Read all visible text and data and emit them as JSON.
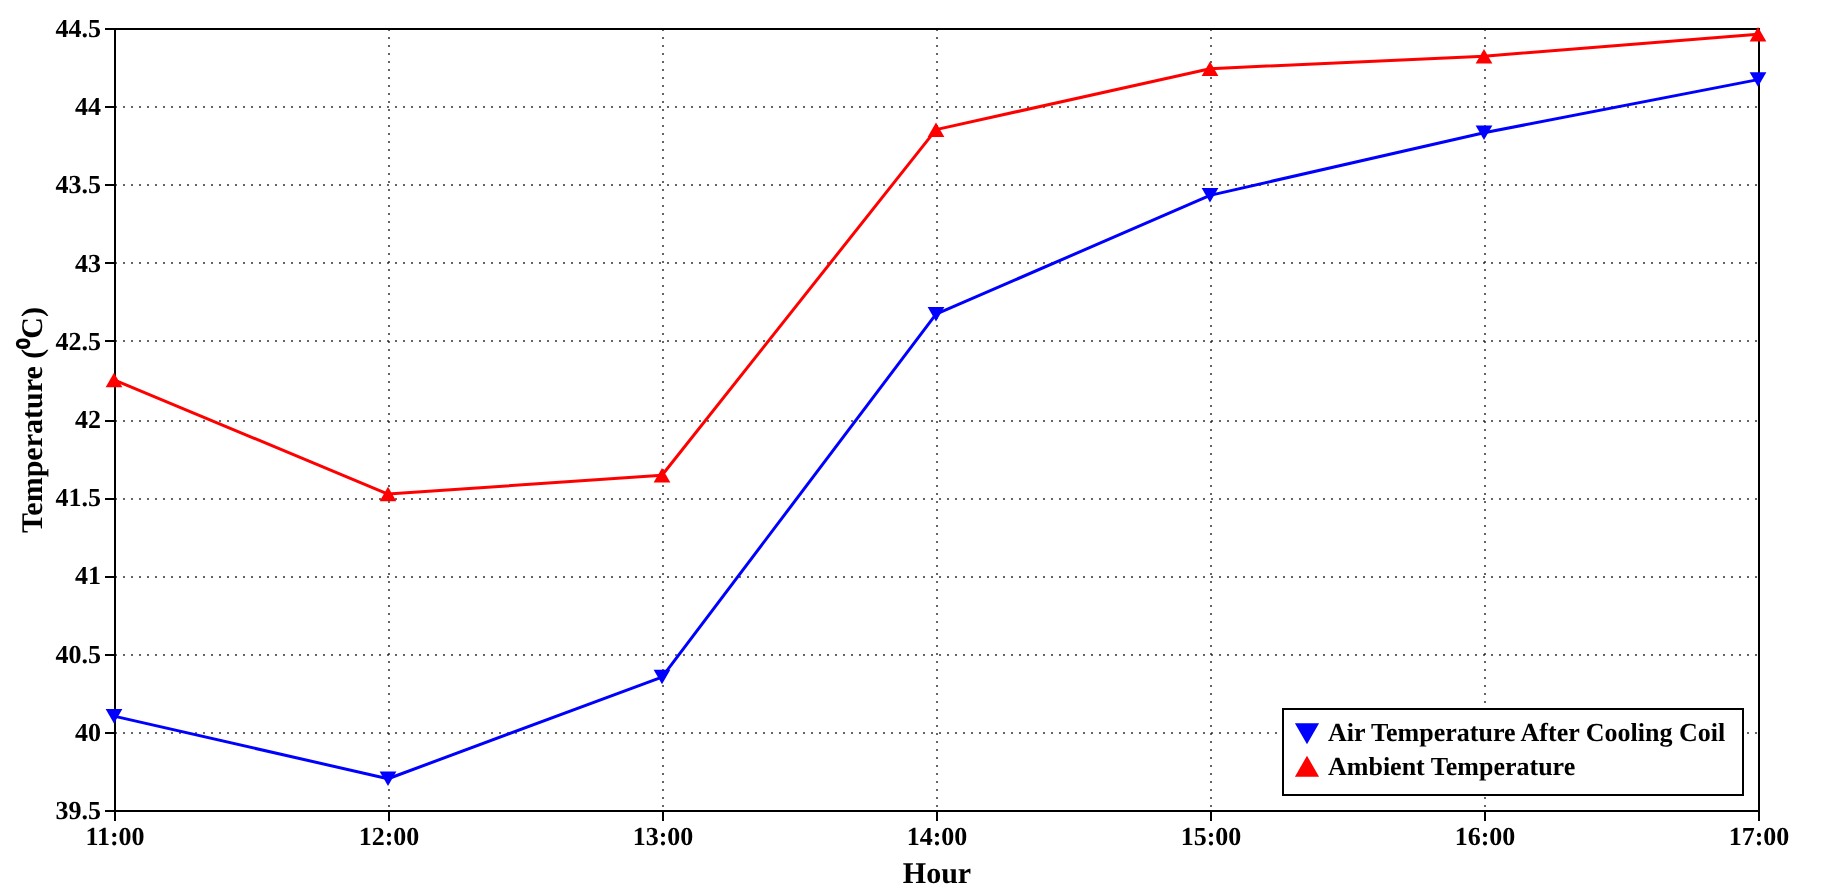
{
  "chart_data": {
    "type": "line",
    "xlabel": "Hour",
    "ylabel": "Temperature (⁰C)",
    "x": [
      11,
      12,
      13,
      14,
      15,
      16,
      17
    ],
    "series": [
      {
        "name": "Air Temperature After Cooling Coil",
        "color": "#0000ff",
        "marker": "triangle-down",
        "values": [
          40.1,
          39.7,
          40.35,
          42.67,
          43.43,
          43.83,
          44.17
        ]
      },
      {
        "name": "Ambient Temperature",
        "color": "#ff0000",
        "marker": "triangle",
        "values": [
          42.25,
          41.52,
          41.64,
          43.85,
          44.24,
          44.32,
          44.46
        ]
      }
    ],
    "xlim": [
      11,
      17
    ],
    "xticks": [
      {
        "value": 11,
        "label": "11:00"
      },
      {
        "value": 12,
        "label": "12:00"
      },
      {
        "value": 13,
        "label": "13:00"
      },
      {
        "value": 14,
        "label": "14:00"
      },
      {
        "value": 15,
        "label": "15:00"
      },
      {
        "value": 16,
        "label": "16:00"
      },
      {
        "value": 17,
        "label": "17:00"
      }
    ],
    "ylim": [
      39.5,
      44.5
    ],
    "yticks": [
      39.5,
      40,
      40.5,
      41,
      41.5,
      42,
      42.5,
      43,
      43.5,
      44,
      44.5
    ],
    "grid": true,
    "legend": "bottom right",
    "line_style": "solid"
  }
}
